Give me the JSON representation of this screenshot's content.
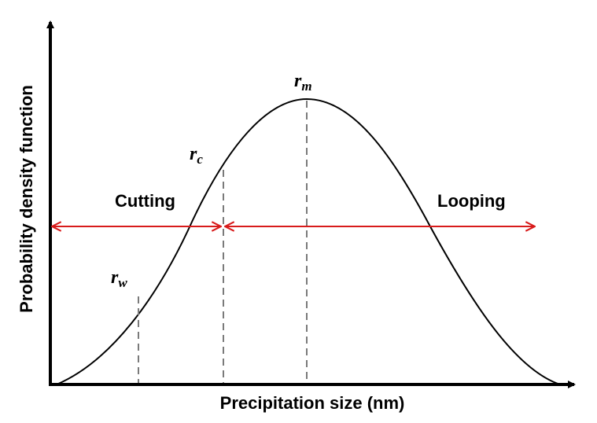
{
  "diagram": {
    "x_axis_title": "Precipitation size (nm)",
    "y_axis_title": "Probability density function",
    "regions": {
      "left_label": "Cutting",
      "right_label": "Looping"
    },
    "markers": [
      {
        "symbol": "r",
        "subscript": "w"
      },
      {
        "symbol": "r",
        "subscript": "c"
      },
      {
        "symbol": "r",
        "subscript": "m"
      }
    ],
    "colors": {
      "axis": "#000000",
      "curve": "#000000",
      "arrow": "#d81b1b",
      "dashed": "#7a7a7a"
    }
  }
}
